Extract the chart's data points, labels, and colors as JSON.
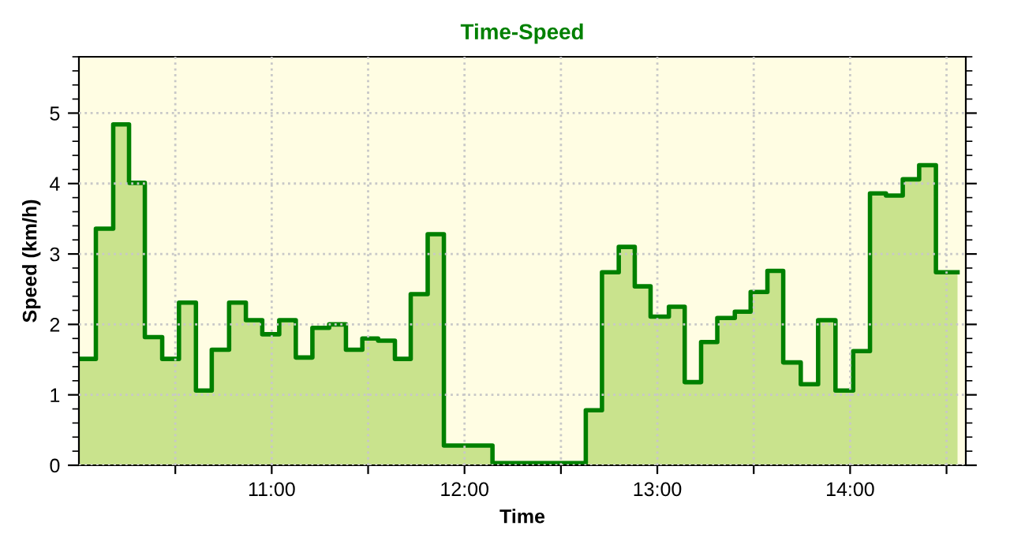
{
  "chart_data": {
    "type": "area",
    "title": "Time-Speed",
    "xlabel": "Time",
    "ylabel": "Speed (km/h)",
    "xlim": [
      10.0,
      14.6
    ],
    "ylim": [
      0,
      5.8
    ],
    "xticks": [
      {
        "value": 10.5,
        "label": null
      },
      {
        "value": 11,
        "label": "11:00"
      },
      {
        "value": 11.5,
        "label": null
      },
      {
        "value": 12,
        "label": "12:00"
      },
      {
        "value": 12.5,
        "label": null
      },
      {
        "value": 13,
        "label": "13:00"
      },
      {
        "value": 13.5,
        "label": null
      },
      {
        "value": 14,
        "label": "14:00"
      },
      {
        "value": 14.5,
        "label": null
      }
    ],
    "yticks": [
      0,
      1,
      2,
      3,
      4,
      5
    ],
    "grid": true,
    "series": [
      {
        "color": "#008000",
        "x": [
          10.0,
          10.088,
          10.088,
          10.178,
          10.178,
          10.26,
          10.26,
          10.342,
          10.342,
          10.432,
          10.432,
          10.519,
          10.519,
          10.607,
          10.607,
          10.689,
          10.689,
          10.779,
          10.779,
          10.866,
          10.866,
          10.951,
          10.951,
          11.039,
          11.039,
          11.125,
          11.125,
          11.211,
          11.211,
          11.298,
          11.298,
          11.385,
          11.385,
          11.47,
          11.47,
          11.552,
          11.552,
          11.639,
          11.639,
          11.721,
          11.721,
          11.809,
          11.809,
          11.893,
          11.893,
          12.145,
          12.145,
          12.629,
          12.629,
          12.713,
          12.713,
          12.8,
          12.8,
          12.883,
          12.883,
          12.965,
          12.965,
          13.06,
          13.06,
          13.142,
          13.142,
          13.227,
          13.227,
          13.311,
          13.311,
          13.402,
          13.402,
          13.484,
          13.484,
          13.571,
          13.571,
          13.653,
          13.653,
          13.744,
          13.744,
          13.834,
          13.834,
          13.924,
          13.924,
          14.016,
          14.016,
          14.103,
          14.103,
          14.186,
          14.186,
          14.273,
          14.273,
          14.358,
          14.358,
          14.445,
          14.445,
          14.557
        ],
        "values": [
          1.51,
          1.51,
          3.36,
          3.36,
          4.84,
          4.84,
          4.01,
          4.01,
          1.82,
          1.82,
          1.51,
          1.51,
          2.31,
          2.31,
          1.06,
          1.06,
          1.64,
          1.64,
          2.31,
          2.31,
          2.06,
          2.06,
          1.86,
          1.86,
          2.06,
          2.06,
          1.53,
          1.53,
          1.95,
          1.95,
          2.0,
          2.0,
          1.64,
          1.64,
          1.8,
          1.8,
          1.77,
          1.77,
          1.51,
          1.51,
          2.43,
          2.43,
          3.28,
          3.28,
          0.28,
          0.28,
          0.03,
          0.03,
          0.78,
          0.78,
          2.74,
          2.74,
          3.1,
          3.1,
          2.54,
          2.54,
          2.11,
          2.11,
          2.25,
          2.25,
          1.18,
          1.18,
          1.75,
          1.75,
          2.09,
          2.09,
          2.18,
          2.18,
          2.46,
          2.46,
          2.76,
          2.76,
          1.46,
          1.46,
          1.15,
          1.15,
          2.06,
          2.06,
          1.06,
          1.06,
          1.62,
          1.62,
          3.86,
          3.86,
          3.83,
          3.83,
          4.06,
          4.06,
          4.26,
          4.26,
          2.74,
          2.74
        ]
      }
    ]
  }
}
